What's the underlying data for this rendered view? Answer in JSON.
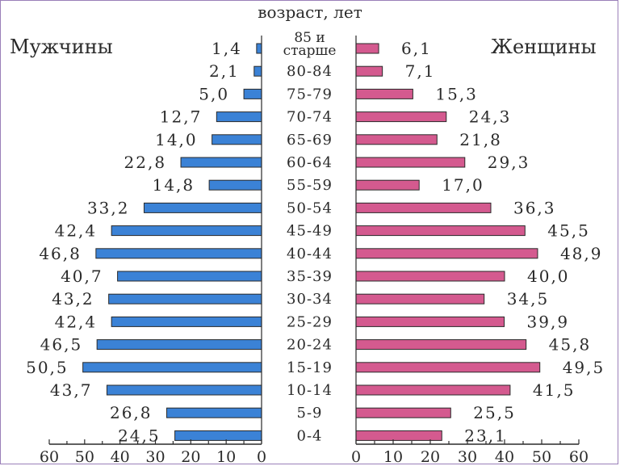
{
  "chart_data": {
    "type": "bar",
    "title": "возраст, лет",
    "categories": [
      "85 и старше",
      "80-84",
      "75-79",
      "70-74",
      "65-69",
      "60-64",
      "55-59",
      "50-54",
      "45-49",
      "40-44",
      "35-39",
      "30-34",
      "25-29",
      "20-24",
      "15-19",
      "10-14",
      "5-9",
      "0-4"
    ],
    "series": [
      {
        "name": "Мужчины",
        "values": [
          1.4,
          2.1,
          5.0,
          12.7,
          14.0,
          22.8,
          14.8,
          33.2,
          42.4,
          46.8,
          40.7,
          43.2,
          42.4,
          46.5,
          50.5,
          43.7,
          26.8,
          24.5
        ],
        "labels": [
          "1,4",
          "2,1",
          "5,0",
          "12,7",
          "14,0",
          "22,8",
          "14,8",
          "33,2",
          "42,4",
          "46,8",
          "40,7",
          "43,2",
          "42,4",
          "46,5",
          "50,5",
          "43,7",
          "26,8",
          "24,5"
        ]
      },
      {
        "name": "Женщины",
        "values": [
          6.1,
          7.1,
          15.3,
          24.3,
          21.8,
          29.3,
          17.0,
          36.3,
          45.5,
          48.9,
          40.0,
          34.5,
          39.9,
          45.8,
          49.5,
          41.5,
          25.5,
          23.1
        ],
        "labels": [
          "6,1",
          "7,1",
          "15,3",
          "24,3",
          "21,8",
          "29,3",
          "17,0",
          "36,3",
          "45,5",
          "48,9",
          "40,0",
          "34,5",
          "39,9",
          "45,8",
          "49,5",
          "41,5",
          "25,5",
          "23,1"
        ]
      }
    ],
    "x_ticks_left": [
      "60",
      "50",
      "40",
      "30",
      "20",
      "10",
      "0"
    ],
    "x_ticks_right": [
      "0",
      "10",
      "20",
      "30",
      "40",
      "50",
      "60"
    ],
    "xlim": [
      0,
      60
    ],
    "colors": {
      "male": "#3b82d6",
      "female": "#d45a8f",
      "ink": "#2a2a2a"
    }
  }
}
